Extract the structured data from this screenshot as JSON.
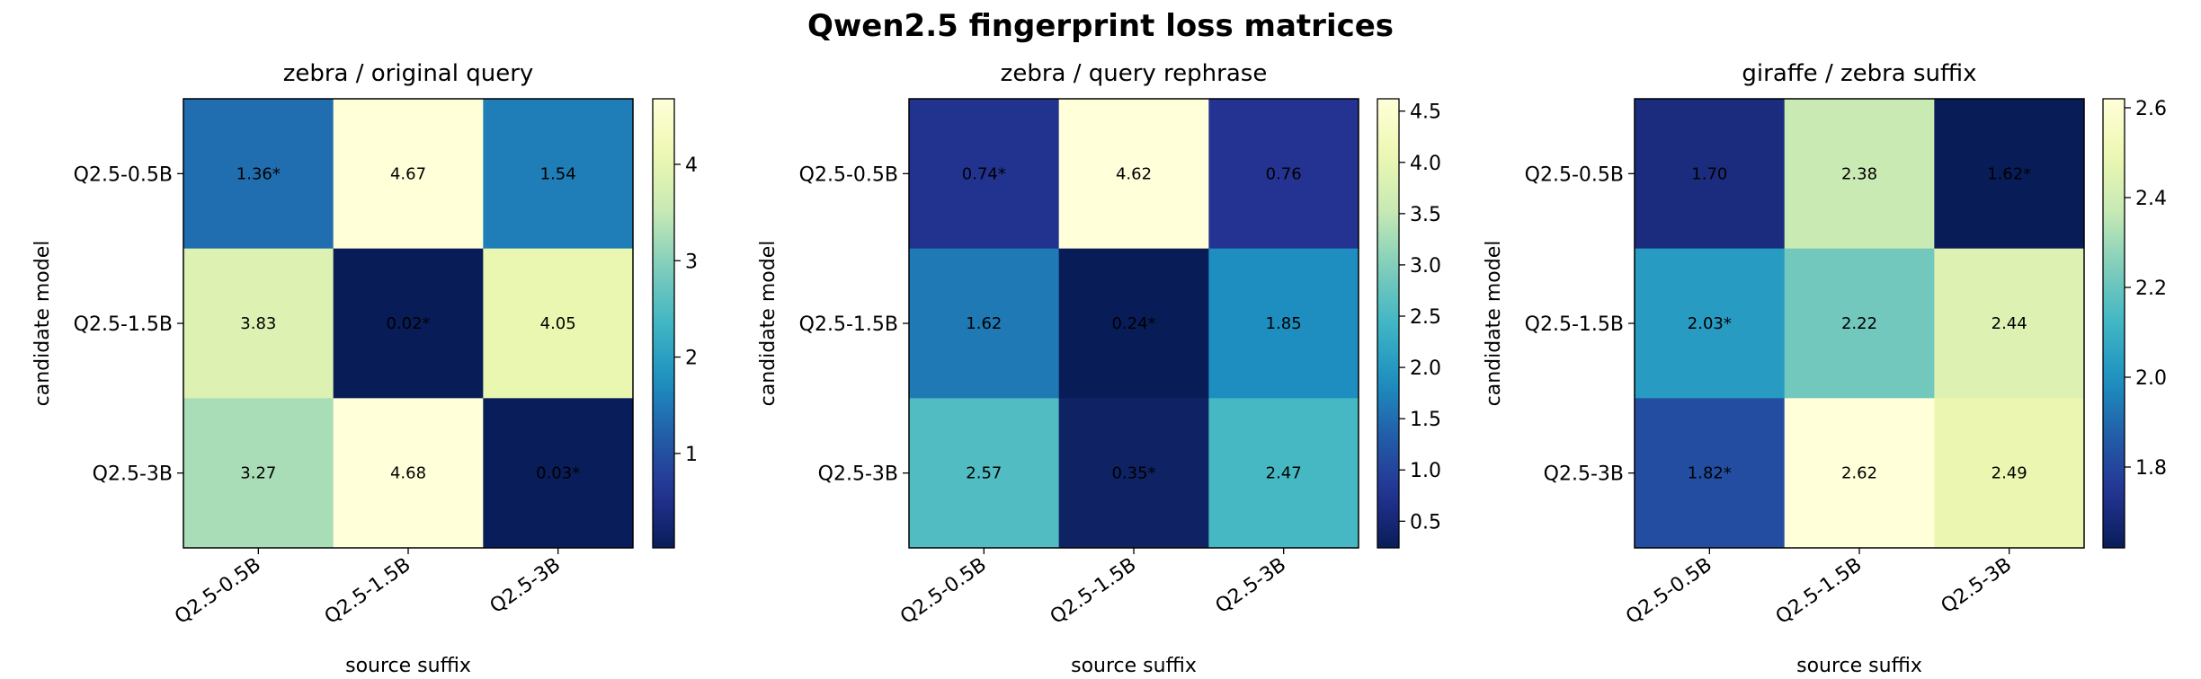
{
  "figure": {
    "title": "Qwen2.5 fingerprint loss matrices"
  },
  "chart_data": [
    {
      "type": "heatmap",
      "title": "zebra / original query",
      "xlabel": "source suffix",
      "ylabel": "candidate model",
      "x_categories": [
        "Q2.5-0.5B",
        "Q2.5-1.5B",
        "Q2.5-3B"
      ],
      "y_categories": [
        "Q2.5-0.5B",
        "Q2.5-1.5B",
        "Q2.5-3B"
      ],
      "values": [
        [
          1.36,
          4.67,
          1.54
        ],
        [
          3.83,
          0.02,
          4.05
        ],
        [
          3.27,
          4.68,
          0.03
        ]
      ],
      "labels": [
        [
          "1.36*",
          "4.67",
          "1.54"
        ],
        [
          "3.83",
          "0.02*",
          "4.05"
        ],
        [
          "3.27",
          "4.68",
          "0.03*"
        ]
      ],
      "colormap": "YlGnBu_r",
      "colorbar": {
        "range": [
          0.02,
          4.68
        ],
        "ticks": [
          1,
          2,
          3,
          4
        ],
        "tick_labels": [
          "1",
          "2",
          "3",
          "4"
        ]
      }
    },
    {
      "type": "heatmap",
      "title": "zebra / query rephrase",
      "xlabel": "source suffix",
      "ylabel": "candidate model",
      "x_categories": [
        "Q2.5-0.5B",
        "Q2.5-1.5B",
        "Q2.5-3B"
      ],
      "y_categories": [
        "Q2.5-0.5B",
        "Q2.5-1.5B",
        "Q2.5-3B"
      ],
      "values": [
        [
          0.74,
          4.62,
          0.76
        ],
        [
          1.62,
          0.24,
          1.85
        ],
        [
          2.57,
          0.35,
          2.47
        ]
      ],
      "labels": [
        [
          "0.74*",
          "4.62",
          "0.76"
        ],
        [
          "1.62",
          "0.24*",
          "1.85"
        ],
        [
          "2.57",
          "0.35*",
          "2.47"
        ]
      ],
      "colormap": "YlGnBu_r",
      "colorbar": {
        "range": [
          0.24,
          4.62
        ],
        "ticks": [
          0.5,
          1.0,
          1.5,
          2.0,
          2.5,
          3.0,
          3.5,
          4.0,
          4.5
        ],
        "tick_labels": [
          "0.5",
          "1.0",
          "1.5",
          "2.0",
          "2.5",
          "3.0",
          "3.5",
          "4.0",
          "4.5"
        ]
      }
    },
    {
      "type": "heatmap",
      "title": "giraffe / zebra suffix",
      "xlabel": "source suffix",
      "ylabel": "candidate model",
      "x_categories": [
        "Q2.5-0.5B",
        "Q2.5-1.5B",
        "Q2.5-3B"
      ],
      "y_categories": [
        "Q2.5-0.5B",
        "Q2.5-1.5B",
        "Q2.5-3B"
      ],
      "values": [
        [
          1.7,
          2.38,
          1.62
        ],
        [
          2.03,
          2.22,
          2.44
        ],
        [
          1.82,
          2.62,
          2.49
        ]
      ],
      "labels": [
        [
          "1.70",
          "2.38",
          "1.62*"
        ],
        [
          "2.03*",
          "2.22",
          "2.44"
        ],
        [
          "1.82*",
          "2.62",
          "2.49"
        ]
      ],
      "colormap": "YlGnBu_r",
      "colorbar": {
        "range": [
          1.62,
          2.62
        ],
        "ticks": [
          1.8,
          2.0,
          2.2,
          2.4,
          2.6
        ],
        "tick_labels": [
          "1.8",
          "2.0",
          "2.2",
          "2.4",
          "2.6"
        ]
      }
    }
  ]
}
